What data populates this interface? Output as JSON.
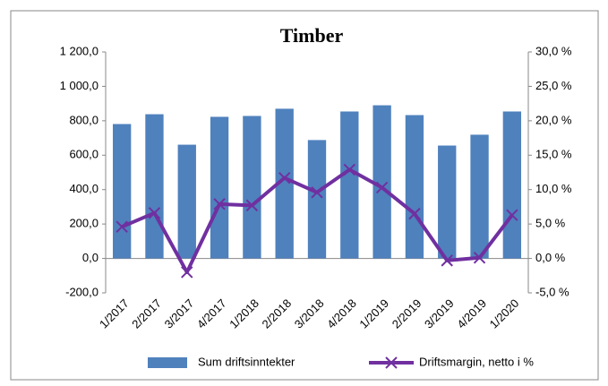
{
  "chart_data": {
    "type": "bar",
    "title": "Timber",
    "categories": [
      "1/2017",
      "2/2017",
      "3/2017",
      "4/2017",
      "1/2018",
      "2/2018",
      "3/2018",
      "4/2018",
      "1/2019",
      "2/2019",
      "3/2019",
      "4/2019",
      "1/2020"
    ],
    "series": [
      {
        "name": "Sum driftsinntekter",
        "type": "bar",
        "color": "#4f81bd",
        "values": [
          781,
          838,
          661,
          823,
          828,
          870,
          688,
          854,
          890,
          833,
          656,
          719,
          854
        ]
      },
      {
        "name": "Driftsmargin, netto i %",
        "type": "line",
        "axis": "y2",
        "color": "#7030a0",
        "values": [
          4.6,
          6.6,
          -2.0,
          7.9,
          7.7,
          11.7,
          9.6,
          12.9,
          10.3,
          6.5,
          -0.3,
          0.1,
          6.3
        ]
      }
    ],
    "ylim": [
      -200,
      1200
    ],
    "yticks": [
      {
        "value": -200,
        "label": "-200,0"
      },
      {
        "value": 0,
        "label": "0,0"
      },
      {
        "value": 200,
        "label": "200,0"
      },
      {
        "value": 400,
        "label": "400,0"
      },
      {
        "value": 600,
        "label": "600,0"
      },
      {
        "value": 800,
        "label": "800,0"
      },
      {
        "value": 1000,
        "label": "1 000,0"
      },
      {
        "value": 1200,
        "label": "1 200,0"
      }
    ],
    "y2lim": [
      -5,
      30
    ],
    "y2ticks": [
      {
        "value": -5,
        "label": "-5,0 %"
      },
      {
        "value": 0,
        "label": "0,0 %"
      },
      {
        "value": 5,
        "label": "5,0 %"
      },
      {
        "value": 10,
        "label": "10,0 %"
      },
      {
        "value": 15,
        "label": "15,0 %"
      },
      {
        "value": 20,
        "label": "20,0 %"
      },
      {
        "value": 25,
        "label": "25,0 %"
      },
      {
        "value": 30,
        "label": "30,0 %"
      }
    ],
    "legend": "bottom"
  }
}
